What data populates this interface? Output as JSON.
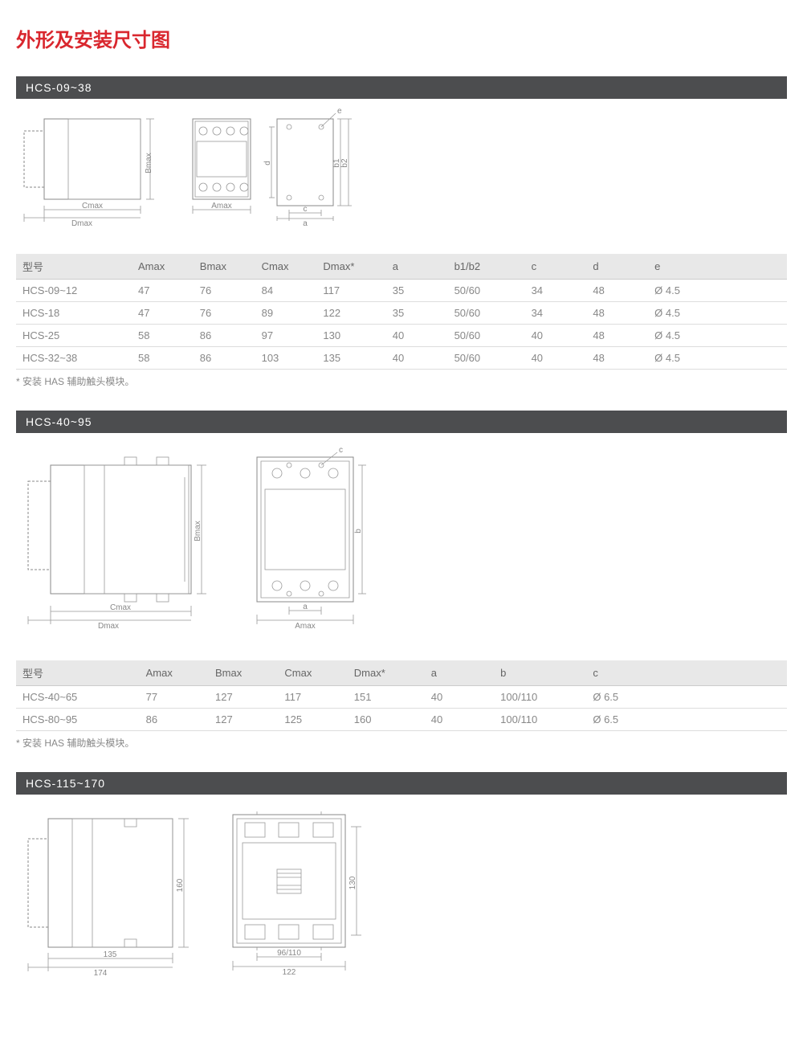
{
  "page_title": "外形及安装尺寸图",
  "colors": {
    "title": "#d9272e",
    "header_bg": "#4c4d4f",
    "header_text": "#ffffff",
    "th_bg": "#e8e8e8",
    "border": "#dddddd",
    "text": "#666666",
    "muted": "#888888",
    "diagram_stroke": "#999999"
  },
  "sections": [
    {
      "title": "HCS-09~38",
      "columns": [
        "型号",
        "Amax",
        "Bmax",
        "Cmax",
        "Dmax*",
        "a",
        "b1/b2",
        "c",
        "d",
        "e"
      ],
      "col_widths_pct": [
        15,
        8,
        8,
        8,
        9,
        8,
        10,
        8,
        8,
        18
      ],
      "rows": [
        [
          "HCS-09~12",
          "47",
          "76",
          "84",
          "117",
          "35",
          "50/60",
          "34",
          "48",
          "Ø 4.5"
        ],
        [
          "HCS-18",
          "47",
          "76",
          "89",
          "122",
          "35",
          "50/60",
          "34",
          "48",
          "Ø 4.5"
        ],
        [
          "HCS-25",
          "58",
          "86",
          "97",
          "130",
          "40",
          "50/60",
          "40",
          "48",
          "Ø 4.5"
        ],
        [
          "HCS-32~38",
          "58",
          "86",
          "103",
          "135",
          "40",
          "50/60",
          "40",
          "48",
          "Ø 4.5"
        ]
      ],
      "footnote": "* 安装 HAS 辅助触头模块。",
      "diagrams": {
        "side": {
          "labels": [
            "Bmax",
            "Cmax",
            "Dmax"
          ]
        },
        "front": {
          "labels": [
            "Amax"
          ]
        },
        "back": {
          "labels": [
            "d",
            "b1",
            "b2",
            "c",
            "a",
            "e"
          ]
        }
      }
    },
    {
      "title": "HCS-40~95",
      "columns": [
        "型号",
        "Amax",
        "Bmax",
        "Cmax",
        "Dmax*",
        "a",
        "b",
        "c"
      ],
      "col_widths_pct": [
        16,
        9,
        9,
        9,
        10,
        9,
        12,
        26
      ],
      "rows": [
        [
          "HCS-40~65",
          "77",
          "127",
          "117",
          "151",
          "40",
          "100/110",
          "Ø 6.5"
        ],
        [
          "HCS-80~95",
          "86",
          "127",
          "125",
          "160",
          "40",
          "100/110",
          "Ø 6.5"
        ]
      ],
      "footnote": "* 安装 HAS 辅助触头模块。",
      "diagrams": {
        "side": {
          "labels": [
            "Bmax",
            "Cmax",
            "Dmax"
          ]
        },
        "front": {
          "labels": [
            "Amax",
            "a",
            "b",
            "c"
          ]
        }
      }
    },
    {
      "title": "HCS-115~170",
      "columns": [],
      "rows": [],
      "footnote": "",
      "diagrams": {
        "side": {
          "labels": [
            "160",
            "135",
            "174"
          ]
        },
        "front": {
          "labels": [
            "130",
            "96/110",
            "122"
          ]
        }
      }
    }
  ]
}
